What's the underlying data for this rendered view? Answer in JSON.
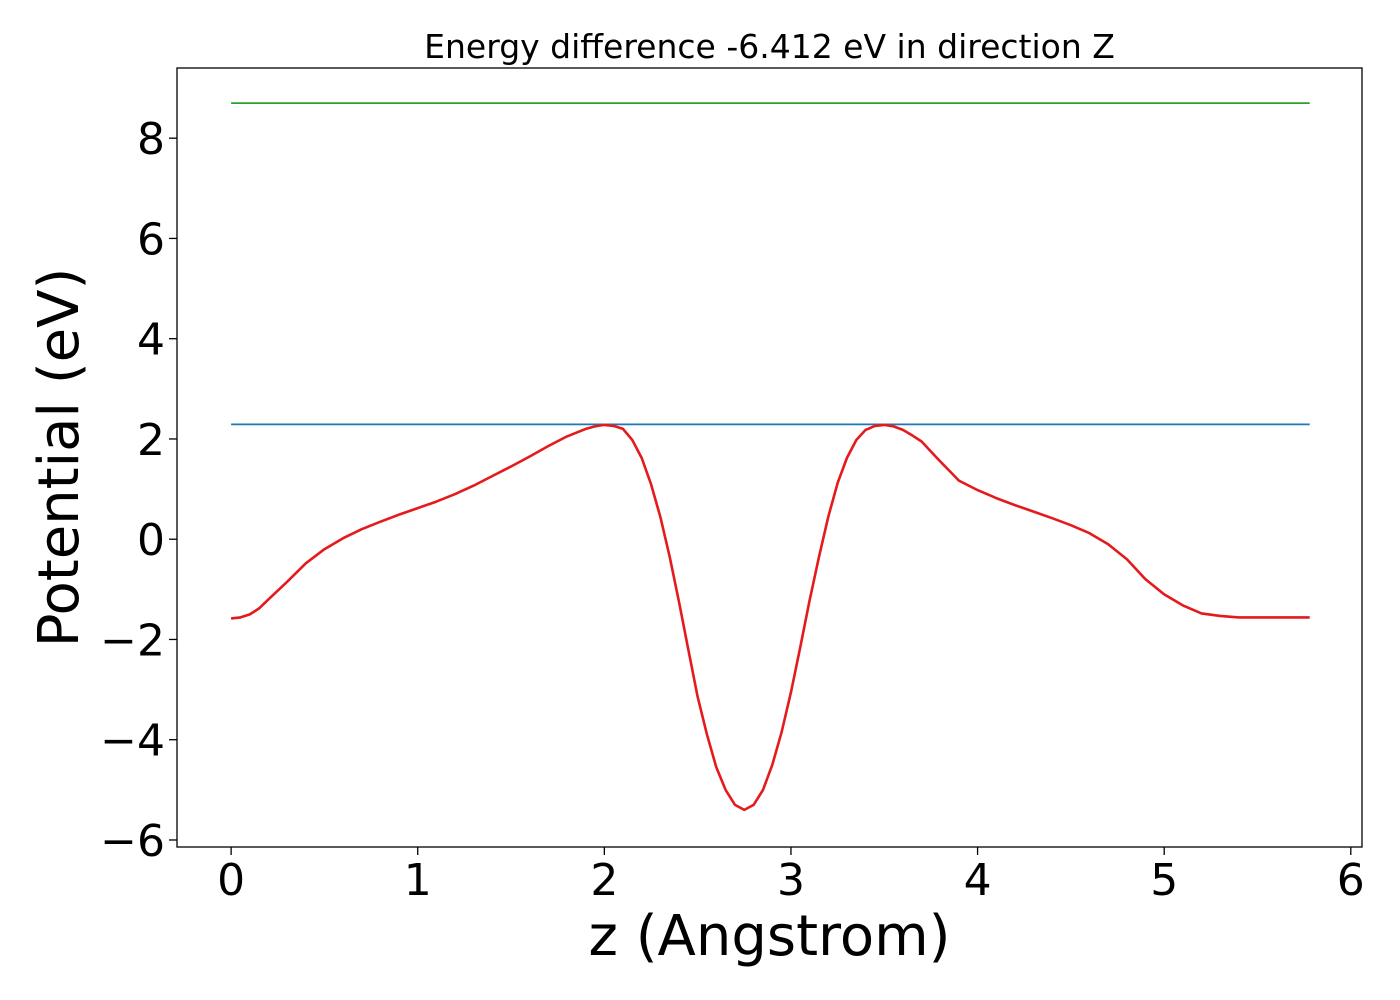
{
  "chart_data": {
    "type": "line",
    "title": "Energy difference -6.412 eV in direction Z",
    "xlabel": "z (Angstrom)",
    "ylabel": "Potential (eV)",
    "xlim": [
      -0.29,
      6.06
    ],
    "ylim": [
      -6.14,
      9.4
    ],
    "xticks": [
      0,
      1,
      2,
      3,
      4,
      5,
      6
    ],
    "yticks": [
      -6,
      -4,
      -2,
      0,
      2,
      4,
      6,
      8
    ],
    "xtick_labels": [
      "0",
      "1",
      "2",
      "3",
      "4",
      "5",
      "6"
    ],
    "ytick_labels": [
      "−6",
      "−4",
      "−2",
      "0",
      "2",
      "4",
      "6",
      "8"
    ],
    "grid": false,
    "series": [
      {
        "color": "#2ca02c",
        "x": [
          0,
          5.78
        ],
        "y": [
          8.7,
          8.7
        ]
      },
      {
        "color": "#1f77b4",
        "x": [
          0,
          5.78
        ],
        "y": [
          2.29,
          2.29
        ]
      },
      {
        "color": "#e41a1c",
        "x": [
          0,
          0.05,
          0.1,
          0.15,
          0.2,
          0.3,
          0.4,
          0.5,
          0.6,
          0.7,
          0.8,
          0.9,
          1.0,
          1.1,
          1.2,
          1.3,
          1.4,
          1.5,
          1.6,
          1.7,
          1.8,
          1.9,
          1.95,
          2.0,
          2.05,
          2.1,
          2.15,
          2.2,
          2.25,
          2.3,
          2.35,
          2.4,
          2.45,
          2.5,
          2.55,
          2.6,
          2.65,
          2.7,
          2.75,
          2.8,
          2.85,
          2.9,
          2.95,
          3.0,
          3.05,
          3.1,
          3.15,
          3.2,
          3.25,
          3.3,
          3.35,
          3.4,
          3.45,
          3.5,
          3.55,
          3.6,
          3.65,
          3.7,
          3.75,
          3.8,
          3.85,
          3.9,
          4.0,
          4.1,
          4.2,
          4.3,
          4.4,
          4.5,
          4.6,
          4.7,
          4.8,
          4.9,
          5.0,
          5.1,
          5.2,
          5.3,
          5.4,
          5.5,
          5.6,
          5.65,
          5.7,
          5.78
        ],
        "y": [
          -1.58,
          -1.56,
          -1.5,
          -1.38,
          -1.2,
          -0.85,
          -0.48,
          -0.2,
          0.02,
          0.2,
          0.35,
          0.49,
          0.62,
          0.75,
          0.9,
          1.07,
          1.26,
          1.45,
          1.65,
          1.86,
          2.05,
          2.2,
          2.25,
          2.28,
          2.26,
          2.2,
          1.98,
          1.62,
          1.1,
          0.45,
          -0.35,
          -1.25,
          -2.2,
          -3.15,
          -3.9,
          -4.55,
          -5.0,
          -5.3,
          -5.4,
          -5.3,
          -5.0,
          -4.5,
          -3.85,
          -3.05,
          -2.15,
          -1.22,
          -0.35,
          0.45,
          1.12,
          1.62,
          1.98,
          2.18,
          2.26,
          2.28,
          2.25,
          2.18,
          2.07,
          1.95,
          1.75,
          1.55,
          1.36,
          1.17,
          0.98,
          0.82,
          0.68,
          0.55,
          0.42,
          0.28,
          0.12,
          -0.1,
          -0.4,
          -0.8,
          -1.1,
          -1.32,
          -1.48,
          -1.53,
          -1.56,
          -1.56,
          -1.56,
          -1.56,
          -1.56,
          -1.56
        ]
      }
    ]
  }
}
